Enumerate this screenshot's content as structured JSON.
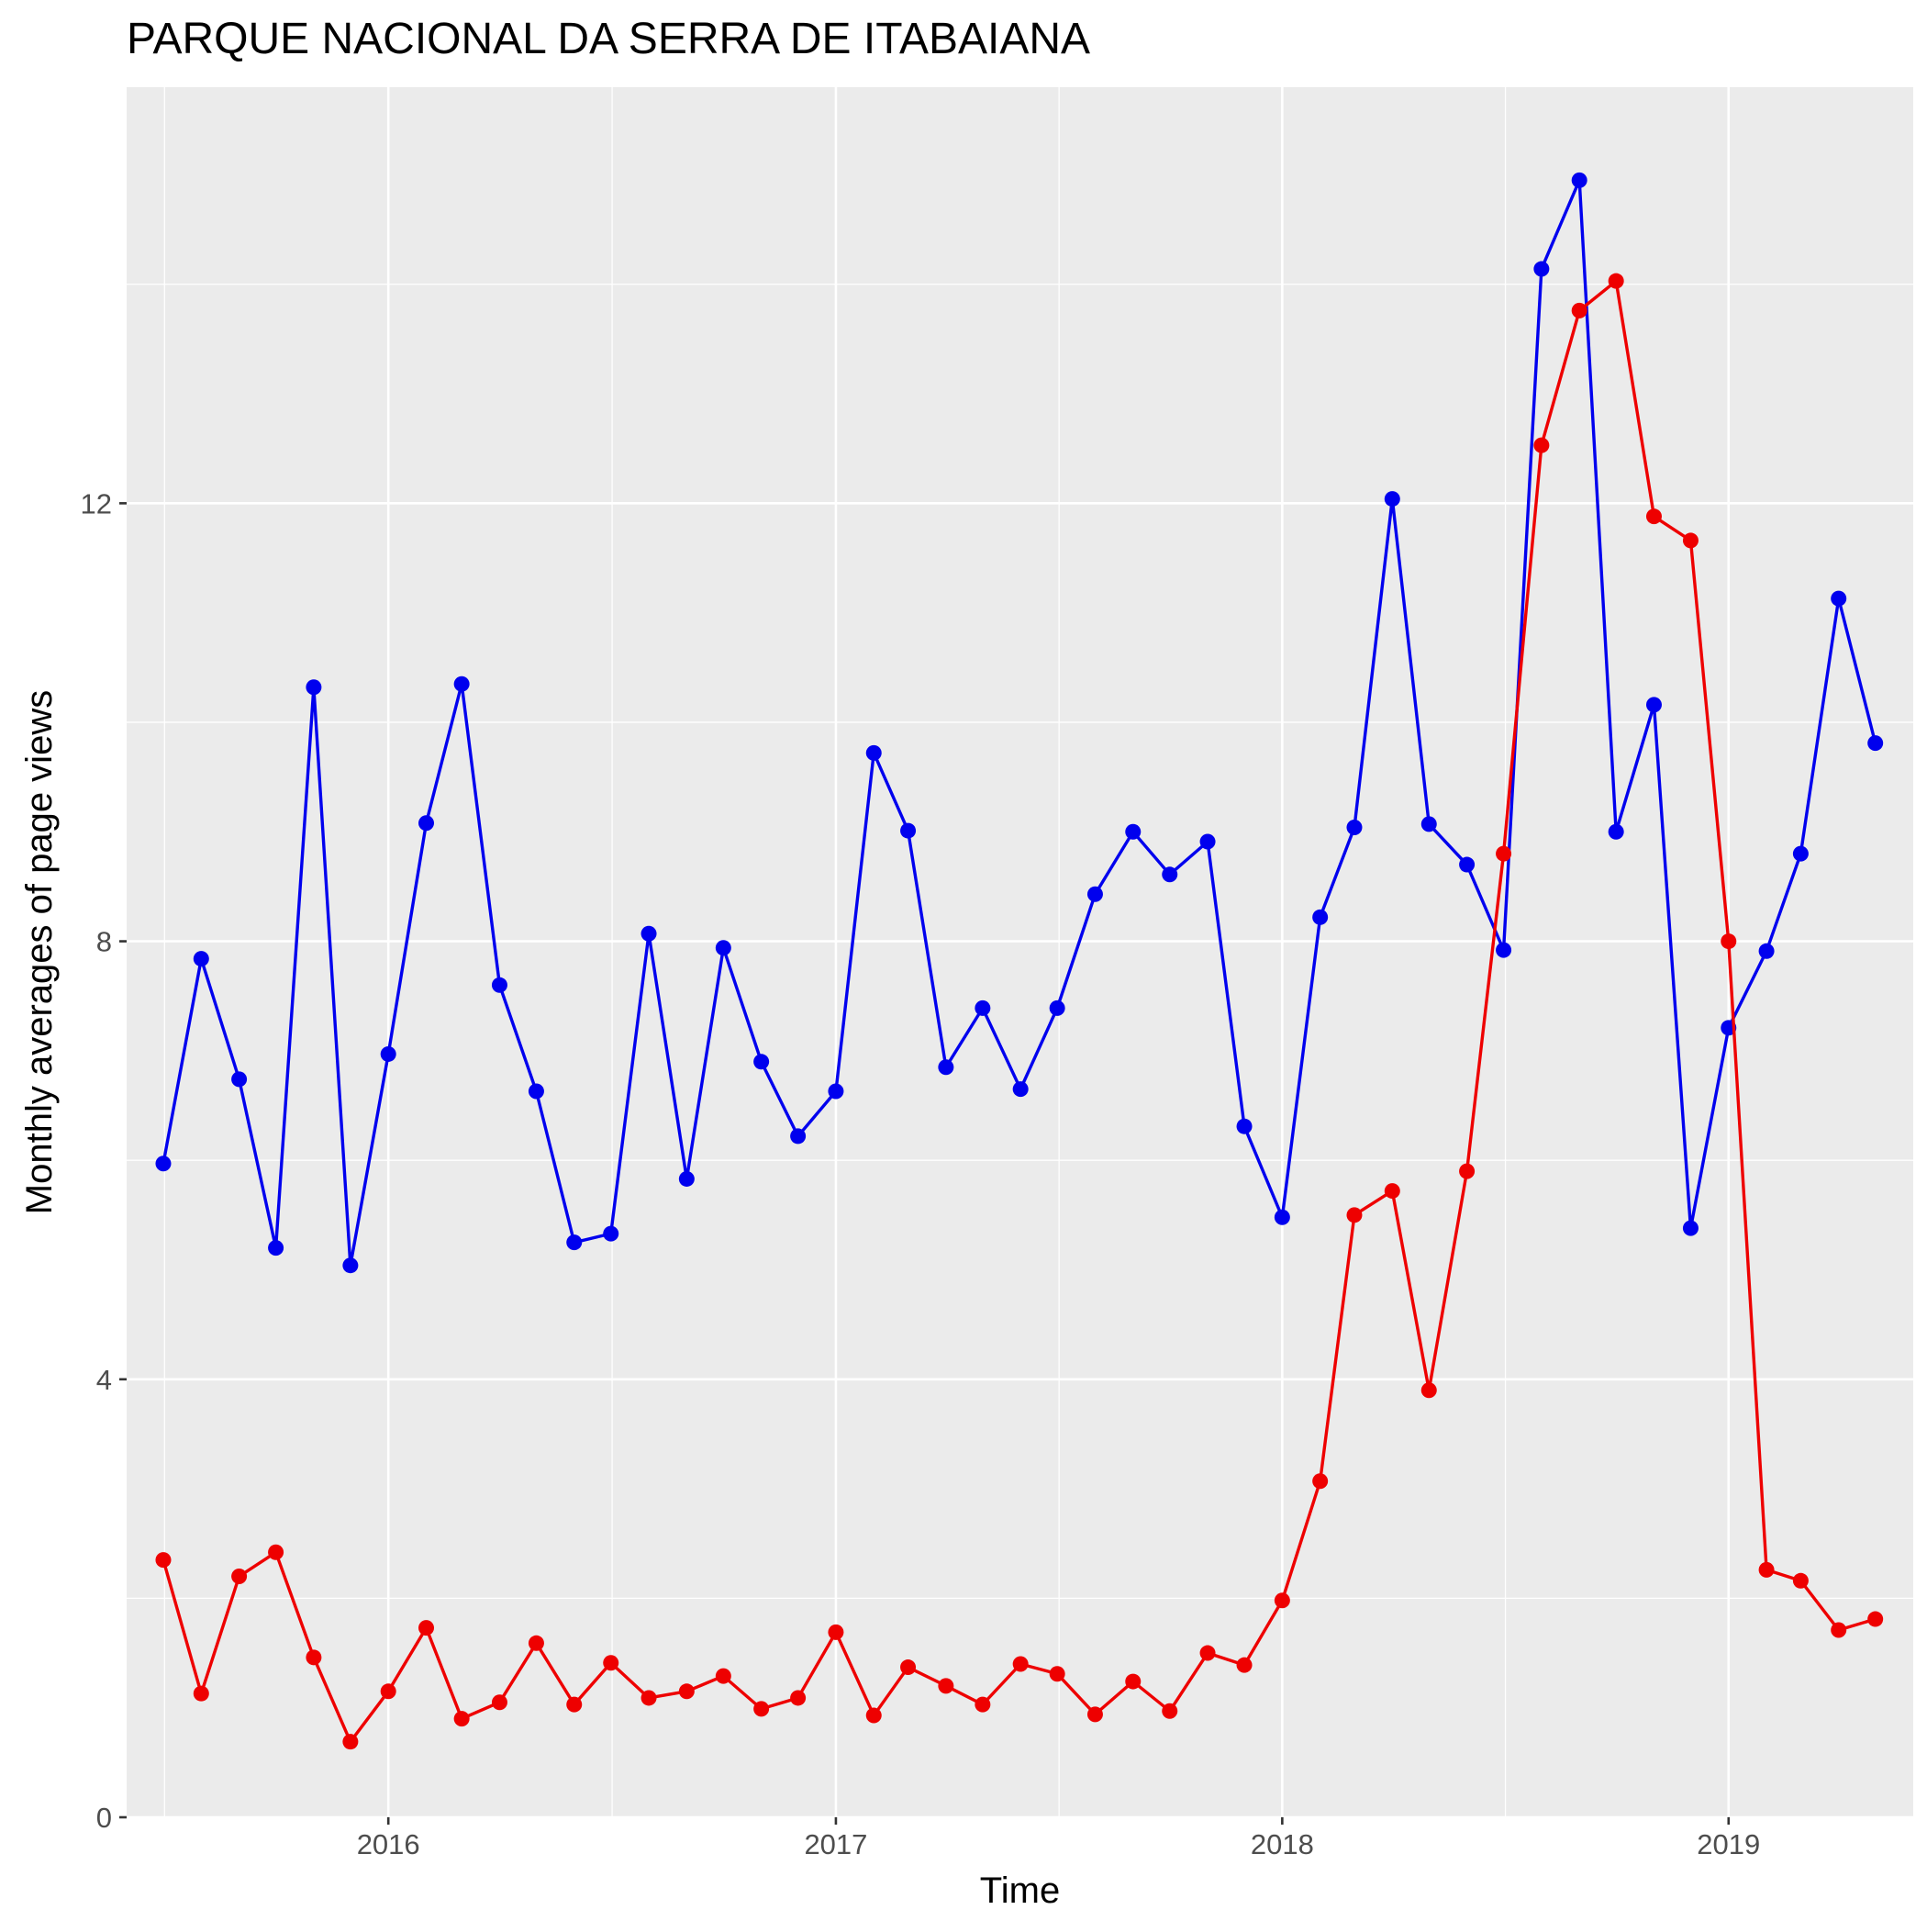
{
  "chart_data": {
    "type": "line",
    "title": "PARQUE NACIONAL DA SERRA DE ITABAIANA",
    "xlabel": "Time",
    "ylabel": "Monthly averages of page views",
    "xlim": [
      "2015-06-01",
      "2019-06-01"
    ],
    "ylim": [
      0,
      15.8
    ],
    "y_ticks": [
      0,
      4,
      8,
      12
    ],
    "x_ticks": [
      {
        "date": "2016-01-01",
        "label": "2016"
      },
      {
        "date": "2017-01-01",
        "label": "2017"
      },
      {
        "date": "2018-01-01",
        "label": "2018"
      },
      {
        "date": "2019-01-01",
        "label": "2019"
      }
    ],
    "grid": true,
    "legend": "none",
    "colors": {
      "panel_background": "#ebebeb",
      "grid": "#ffffff",
      "axis_ticks": "#333333",
      "blue_series": "#0000ee",
      "red_series": "#ee0000"
    },
    "x": [
      "2015-07-01",
      "2015-08-01",
      "2015-09-01",
      "2015-10-01",
      "2015-11-01",
      "2015-12-01",
      "2016-01-01",
      "2016-02-01",
      "2016-03-01",
      "2016-04-01",
      "2016-05-01",
      "2016-06-01",
      "2016-07-01",
      "2016-08-01",
      "2016-09-01",
      "2016-10-01",
      "2016-11-01",
      "2016-12-01",
      "2017-01-01",
      "2017-02-01",
      "2017-03-01",
      "2017-04-01",
      "2017-05-01",
      "2017-06-01",
      "2017-07-01",
      "2017-08-01",
      "2017-09-01",
      "2017-10-01",
      "2017-11-01",
      "2017-12-01",
      "2018-01-01",
      "2018-02-01",
      "2018-03-01",
      "2018-04-01",
      "2018-05-01",
      "2018-06-01",
      "2018-07-01",
      "2018-08-01",
      "2018-09-01",
      "2018-10-01",
      "2018-11-01",
      "2018-12-01",
      "2019-01-01",
      "2019-02-01",
      "2019-03-01",
      "2019-04-01",
      "2019-05-01"
    ],
    "series": [
      {
        "color": "#0000ee",
        "values": [
          5.97,
          7.84,
          6.74,
          5.2,
          10.32,
          5.04,
          6.97,
          9.08,
          10.35,
          7.6,
          6.63,
          5.25,
          5.33,
          8.07,
          5.83,
          7.94,
          6.9,
          6.22,
          6.63,
          9.72,
          9.01,
          6.85,
          7.39,
          6.65,
          7.39,
          8.43,
          9.0,
          8.61,
          8.91,
          6.31,
          5.48,
          8.22,
          9.04,
          12.04,
          9.07,
          8.7,
          7.92,
          14.14,
          14.95,
          9.0,
          10.16,
          5.38,
          7.21,
          7.91,
          8.8,
          11.13,
          9.81
        ]
      },
      {
        "color": "#ee0000",
        "values": [
          2.35,
          1.13,
          2.2,
          2.42,
          1.46,
          0.69,
          1.15,
          1.73,
          0.9,
          1.05,
          1.59,
          1.03,
          1.41,
          1.09,
          1.15,
          1.29,
          0.99,
          1.09,
          1.69,
          0.93,
          1.37,
          1.2,
          1.03,
          1.4,
          1.31,
          0.94,
          1.24,
          0.97,
          1.5,
          1.39,
          1.98,
          3.07,
          5.5,
          5.72,
          3.9,
          5.9,
          8.8,
          12.53,
          13.76,
          14.03,
          11.88,
          11.66,
          8.0,
          2.26,
          2.16,
          1.71,
          1.81
        ]
      }
    ]
  }
}
